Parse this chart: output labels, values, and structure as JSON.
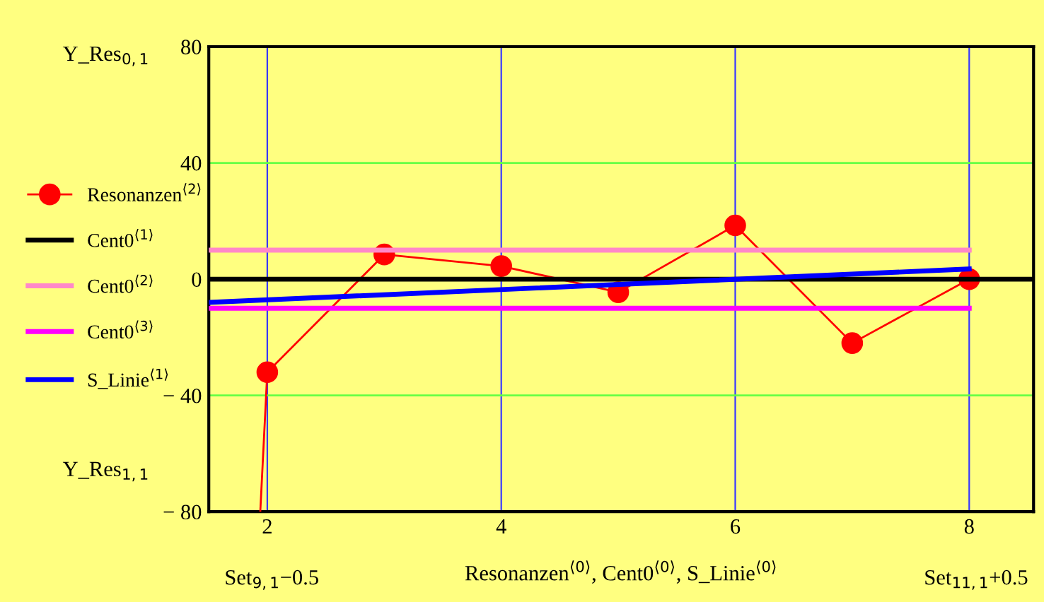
{
  "chart_data": {
    "type": "line",
    "xlabel": "Resonanzen$^{⟨0⟩}$, Cent0$^{⟨0⟩}$, S_Linie$^{⟨0⟩}$",
    "annotations": [
      "Y_Res$_{0,1}$",
      "Y_Res$_{1,1}$",
      "Set$_{9,1}$−0.5",
      "Set$_{11,1}$+0.5"
    ],
    "series": [
      {
        "name": "Resonanzen$^{⟨2⟩}$",
        "color": "#ff0000",
        "marker": "circle",
        "x": [
          2,
          3,
          4,
          5,
          6,
          7,
          8
        ],
        "values": [
          -32,
          8.5,
          4.5,
          -4.5,
          18.5,
          -22,
          0
        ]
      },
      {
        "color": "#ff0000",
        "marker": "none",
        "x": [
          1.94,
          2
        ],
        "values": [
          -80,
          -32
        ]
      },
      {
        "name": "Cent0$^{⟨1⟩}$",
        "color": "#000000",
        "marker": "none",
        "x": [
          1.5,
          8.55
        ],
        "values": [
          0,
          0
        ]
      },
      {
        "name": "Cent0$^{⟨2⟩}$",
        "color": "#ff88c8",
        "marker": "none",
        "x": [
          1.5,
          8
        ],
        "values": [
          10,
          10
        ]
      },
      {
        "name": "Cent0$^{⟨3⟩}$",
        "color": "#ff00ff",
        "marker": "none",
        "x": [
          1.5,
          8
        ],
        "values": [
          -10,
          -10
        ]
      },
      {
        "name": "S_Linie$^{⟨1⟩}$",
        "color": "#0000ff",
        "marker": "none",
        "x": [
          1.5,
          8
        ],
        "values": [
          -8,
          3.5
        ]
      }
    ],
    "xlim": [
      1.5,
      8.55
    ],
    "xticks": [
      2,
      4,
      6,
      8
    ],
    "ylim": [
      -80,
      80
    ],
    "yticks": [
      {
        "value": -80,
        "label": "− 80"
      },
      {
        "value": -40,
        "label": "− 40"
      },
      0,
      40,
      80
    ],
    "grid": true,
    "legend": "left"
  }
}
